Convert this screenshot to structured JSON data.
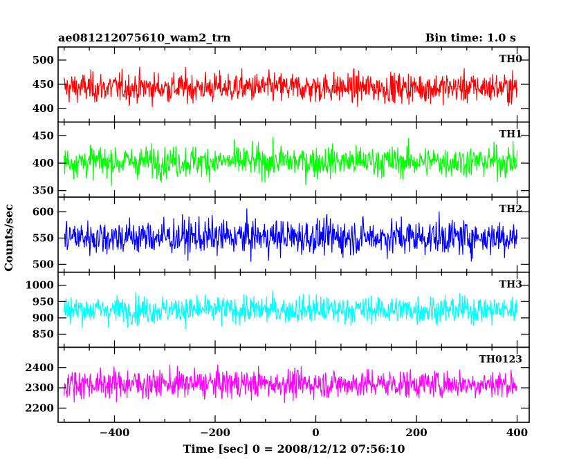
{
  "header": {
    "title": "ae081212075610_wam2_trn",
    "bin_time": "Bin time: 1.0 s"
  },
  "chart_data": {
    "type": "line",
    "xlabel": "Time [sec] 0 = 2008/12/12 07:56:10",
    "ylabel": "Counts/sec",
    "xlim": [
      -512,
      424
    ],
    "x_ticks": [
      -400,
      -200,
      0,
      200,
      400
    ],
    "x_range_data": [
      -500,
      400
    ],
    "bin_time_s": 1.0,
    "panels": [
      {
        "name": "TH0",
        "color": "#ff0000",
        "ylim": [
          372,
          527
        ],
        "y_ticks": [
          400,
          450,
          500
        ],
        "y_tick_labels": [
          "400",
          "450",
          "500"
        ],
        "mean": 443,
        "spread": 22
      },
      {
        "name": "TH1",
        "color": "#00ff00",
        "ylim": [
          338,
          475
        ],
        "y_ticks": [
          350,
          400,
          450
        ],
        "y_tick_labels": [
          "350",
          "400",
          "450"
        ],
        "mean": 403,
        "spread": 20
      },
      {
        "name": "TH2",
        "color": "#0000ff",
        "ylim": [
          485,
          628
        ],
        "y_ticks": [
          500,
          550,
          600
        ],
        "y_tick_labels": [
          "500",
          "550",
          "600"
        ],
        "mean": 552,
        "spread": 24
      },
      {
        "name": "TH3",
        "color": "#00ffff",
        "ylim": [
          810,
          1040
        ],
        "y_ticks": [
          850,
          900,
          950,
          1000
        ],
        "y_tick_labels": [
          "850",
          "900",
          "950",
          "1000"
        ],
        "mean": 925,
        "spread": 30
      },
      {
        "name": "TH0123",
        "color": "#ff00ff",
        "ylim": [
          2130,
          2500
        ],
        "y_ticks": [
          2200,
          2300,
          2400
        ],
        "y_tick_labels": [
          "2200",
          "2300",
          "2400"
        ],
        "mean": 2320,
        "spread": 50
      }
    ]
  }
}
